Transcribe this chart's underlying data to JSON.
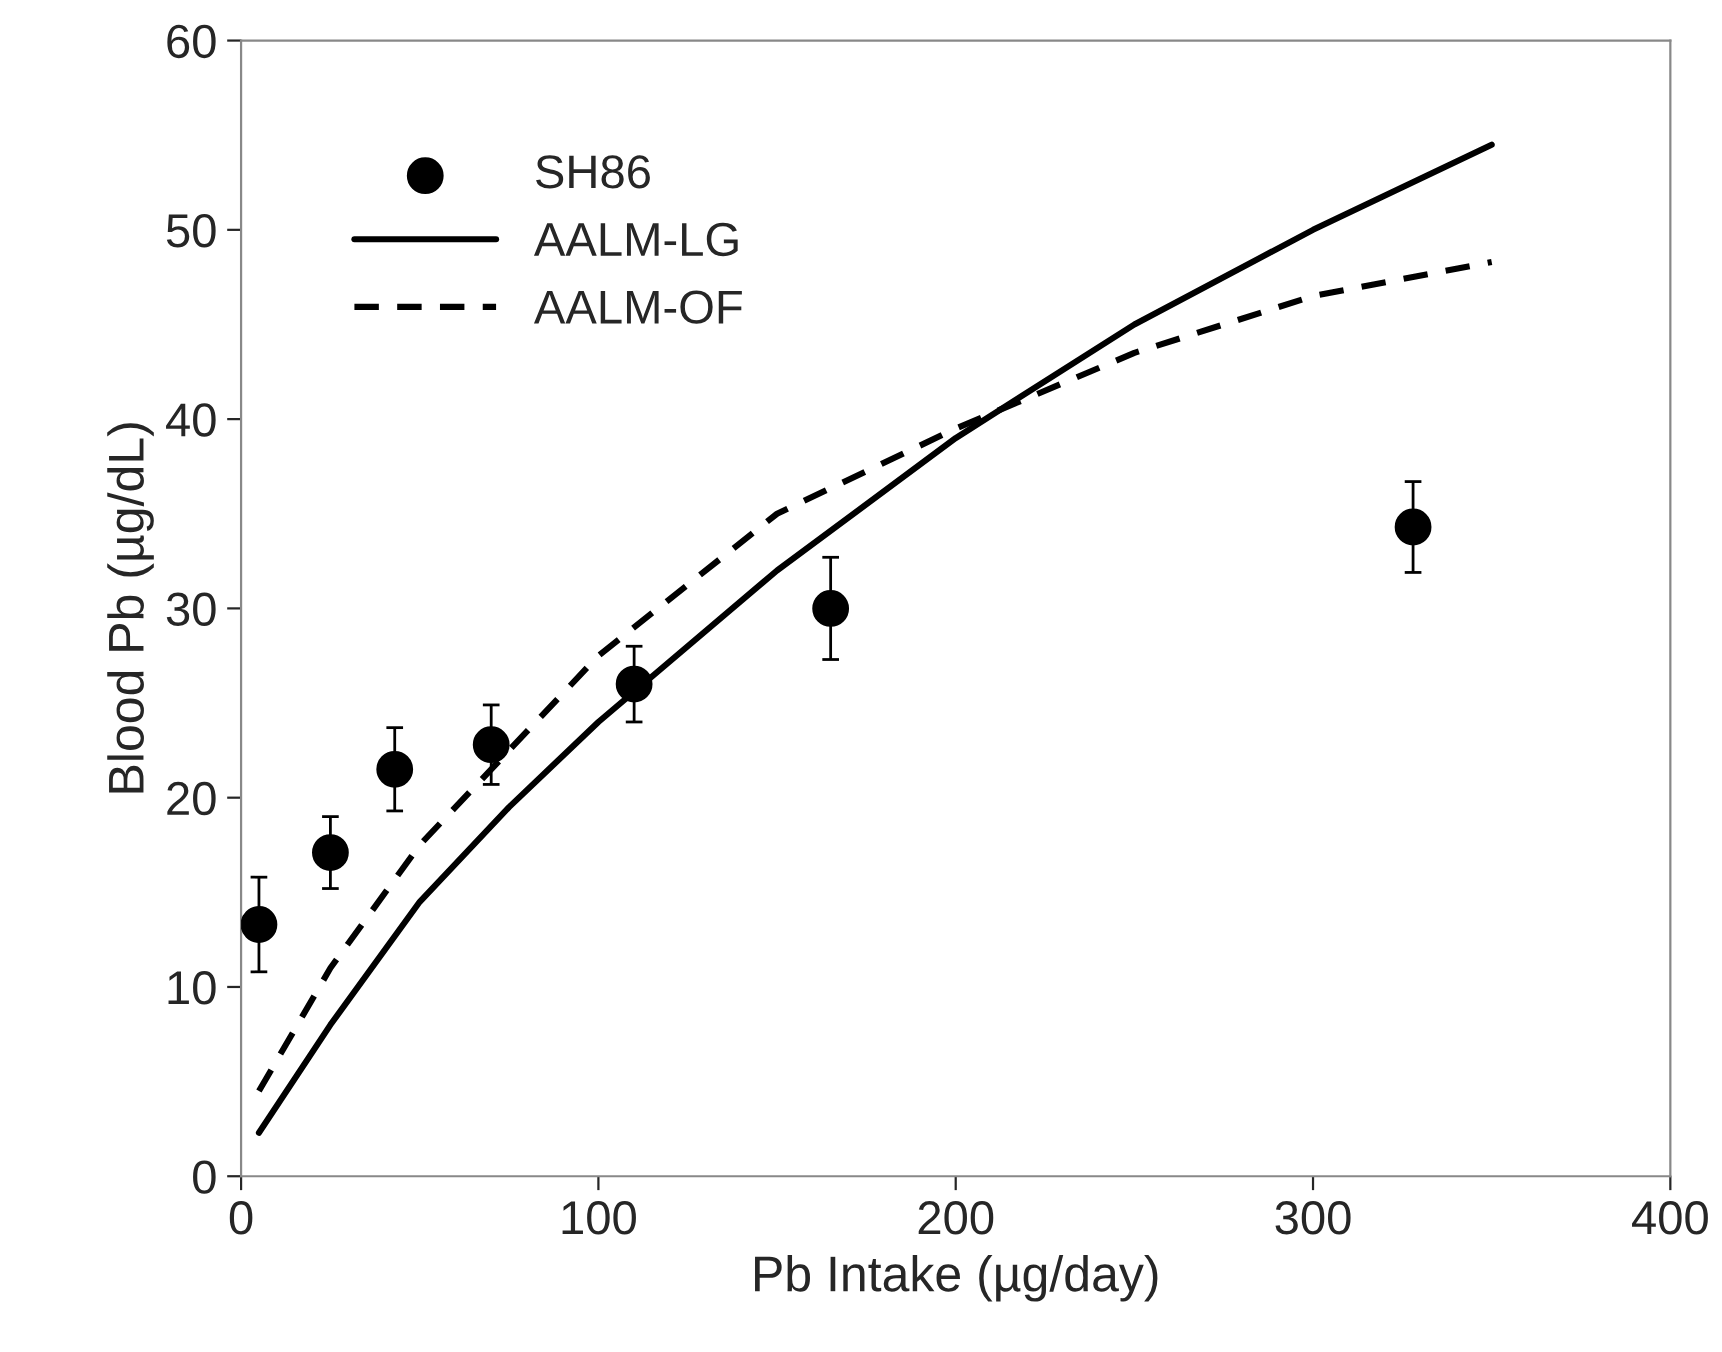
{
  "chart_data": {
    "type": "scatter",
    "xlabel": "Pb Intake (µg/day)",
    "ylabel": "Blood Pb (µg/dL)",
    "xlim": [
      0,
      400
    ],
    "ylim": [
      0,
      60
    ],
    "xticks": [
      0,
      100,
      200,
      300,
      400
    ],
    "yticks": [
      0,
      10,
      20,
      30,
      40,
      50,
      60
    ],
    "grid": false,
    "legend": "top left",
    "series": [
      {
        "name": "SH86",
        "color": "#000000",
        "marker": "circle",
        "x": [
          5,
          25,
          43,
          70,
          110,
          165,
          328
        ],
        "values": [
          13.3,
          17.1,
          21.5,
          22.8,
          26,
          30,
          34.3
        ],
        "errors": [
          2.5,
          1.9,
          2.2,
          2.1,
          2,
          2.7,
          2.4
        ]
      },
      {
        "name": "AALM-LG",
        "type": "line",
        "color": "#000000",
        "line_style": "solid",
        "marker": "none",
        "x": [
          5,
          25,
          50,
          75,
          100,
          150,
          200,
          250,
          300,
          350
        ],
        "values": [
          2.3,
          8,
          14.5,
          19.5,
          24,
          32,
          39,
          45,
          50,
          54.5
        ]
      },
      {
        "name": "AALM-OF",
        "type": "line",
        "color": "#000000",
        "line_style": "dashed",
        "marker": "none",
        "x": [
          5,
          25,
          50,
          75,
          100,
          150,
          200,
          250,
          300,
          350
        ],
        "values": [
          4.5,
          11,
          17.5,
          22.5,
          27.5,
          35,
          39.5,
          43.5,
          46.5,
          48.3
        ]
      }
    ]
  }
}
